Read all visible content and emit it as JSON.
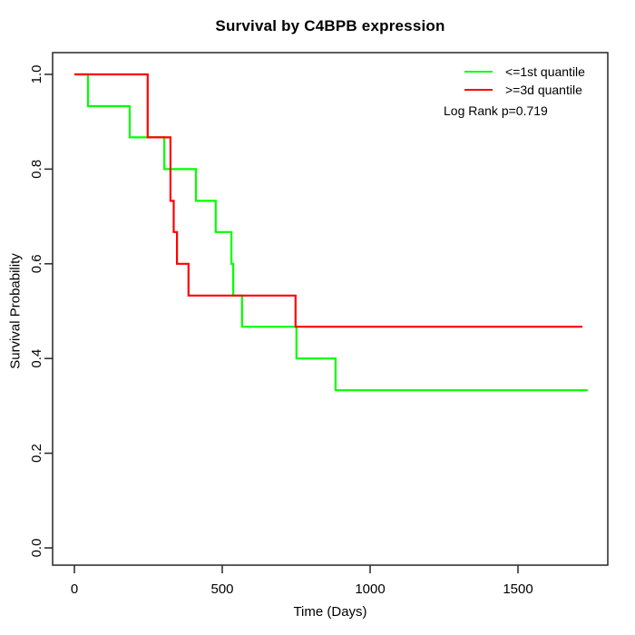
{
  "title": "Survival by C4BPB expression",
  "x_axis": {
    "label": "Time (Days)",
    "tick_labels": [
      "0",
      "500",
      "1000",
      "1500"
    ],
    "tick_values": [
      0,
      500,
      1000,
      1500
    ]
  },
  "y_axis": {
    "label": "Survival Probability",
    "tick_labels": [
      "0.0",
      "0.2",
      "0.4",
      "0.6",
      "0.8",
      "1.0"
    ],
    "tick_values": [
      0,
      0.2,
      0.4,
      0.6,
      0.8,
      1.0
    ]
  },
  "legend": {
    "entries": [
      {
        "label": "<=1st quantile",
        "color": "#00ff00"
      },
      {
        "label": ">=3d quantile",
        "color": "#ff0000"
      }
    ],
    "note": "Log Rank p=0.719"
  },
  "colors": {
    "group_low": "#00ff00",
    "group_high": "#ff0000",
    "axis": "#262626",
    "text": "#000000",
    "background": "#ffffff"
  },
  "chart_data": {
    "type": "line",
    "subtype": "kaplan-meier-step",
    "title": "Survival by C4BPB expression",
    "xlabel": "Time (Days)",
    "ylabel": "Survival Probability",
    "xlim": [
      0,
      1800
    ],
    "ylim": [
      0.0,
      1.0
    ],
    "grid": false,
    "legend_position": "top-right",
    "annotation": "Log Rank p=0.719",
    "series": [
      {
        "name": "<=1st quantile",
        "color": "#00ff00",
        "points": [
          [
            0,
            1.0
          ],
          [
            46,
            0.933
          ],
          [
            187,
            0.867
          ],
          [
            304,
            0.8
          ],
          [
            411,
            0.733
          ],
          [
            478,
            0.667
          ],
          [
            531,
            0.6
          ],
          [
            537,
            0.533
          ],
          [
            567,
            0.467
          ],
          [
            751,
            0.4
          ],
          [
            883,
            0.333
          ],
          [
            1736,
            0.333
          ]
        ]
      },
      {
        "name": ">=3d quantile",
        "color": "#ff0000",
        "points": [
          [
            0,
            1.0
          ],
          [
            248,
            0.867
          ],
          [
            325,
            0.733
          ],
          [
            336,
            0.667
          ],
          [
            347,
            0.6
          ],
          [
            386,
            0.533
          ],
          [
            748,
            0.467
          ],
          [
            1718,
            0.467
          ]
        ]
      }
    ]
  }
}
